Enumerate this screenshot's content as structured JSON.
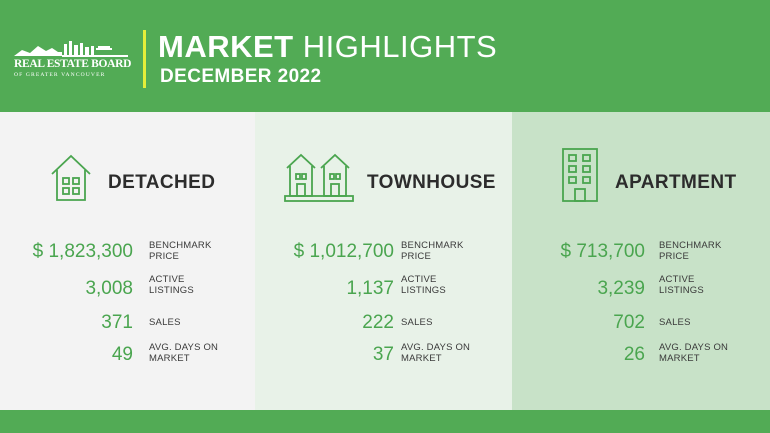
{
  "header": {
    "logo": {
      "name": "REAL ESTATE BOARD",
      "sub": "OF GREATER VANCOUVER"
    },
    "title_bold": "MARKET",
    "title_light": "HIGHLIGHTS",
    "subtitle": "DECEMBER 2022"
  },
  "colors": {
    "brand_green": "#52ab55",
    "accent_yellow": "#e4ee3a",
    "value_green": "#4aa54f"
  },
  "labels": {
    "benchmark_1": "BENCHMARK",
    "benchmark_2": "PRICE",
    "active_1": "ACTIVE",
    "active_2": "LISTINGS",
    "sales": "SALES",
    "days_1": "AVG. DAYS ON",
    "days_2": "MARKET"
  },
  "panels": [
    {
      "title": "DETACHED",
      "icon": "house-icon",
      "benchmark_price": "$ 1,823,300",
      "active_listings": "3,008",
      "sales": "371",
      "avg_days_on_market": "49"
    },
    {
      "title": "TOWNHOUSE",
      "icon": "townhouse-icon",
      "benchmark_price": "$ 1,012,700",
      "active_listings": "1,137",
      "sales": "222",
      "avg_days_on_market": "37"
    },
    {
      "title": "APARTMENT",
      "icon": "apartment-building-icon",
      "benchmark_price": "$ 713,700",
      "active_listings": "3,239",
      "sales": "702",
      "avg_days_on_market": "26"
    }
  ]
}
